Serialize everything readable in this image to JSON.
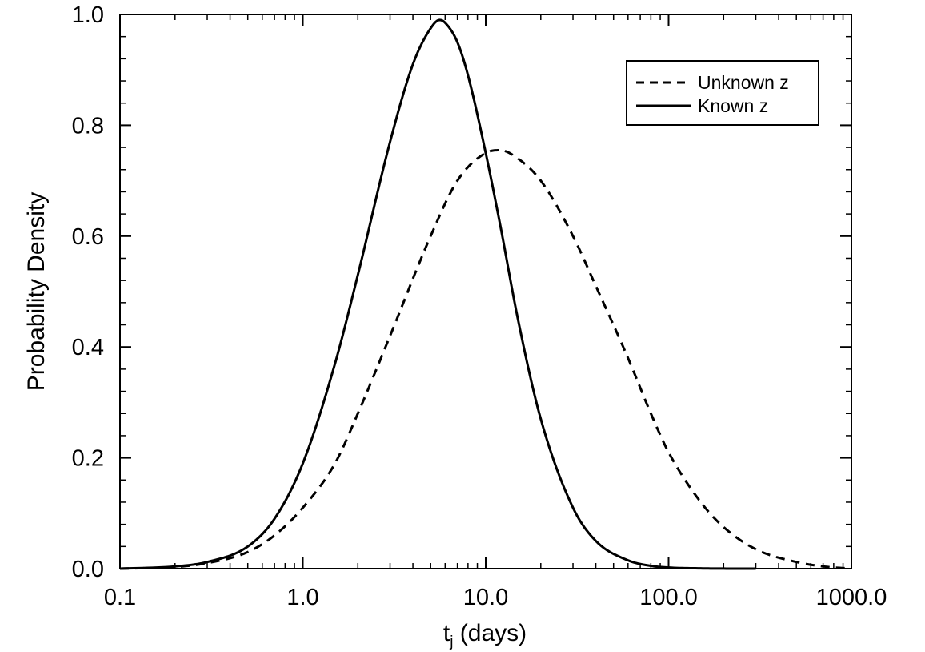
{
  "chart_data": {
    "type": "line",
    "xscale": "log",
    "xlim": [
      0.1,
      1000
    ],
    "ylim": [
      0.0,
      1.0
    ],
    "xlabel_main": "t",
    "xlabel_sub": "j",
    "xlabel_rest": " (days)",
    "ylabel": "Probability Density",
    "xticks": [
      0.1,
      1,
      10,
      100,
      1000
    ],
    "xtick_labels": [
      "0.1",
      "1.0",
      "10.0",
      "100.0",
      "1000.0"
    ],
    "yticks": [
      0.0,
      0.2,
      0.4,
      0.6,
      0.8,
      1.0
    ],
    "ytick_labels": [
      "0.0",
      "0.2",
      "0.4",
      "0.6",
      "0.8",
      "1.0"
    ],
    "grid": false,
    "legend_position": "top-right",
    "series": [
      {
        "name": "Unknown z",
        "style": "dashed",
        "color": "#000000",
        "x": [
          0.1,
          0.2,
          0.3,
          0.5,
          0.7,
          1.0,
          1.5,
          2.0,
          3.0,
          5.0,
          7.0,
          10.0,
          12.0,
          15.0,
          20.0,
          30.0,
          40.0,
          60.0,
          80.0,
          100.0,
          150.0,
          200.0,
          300.0,
          500.0,
          700.0,
          1000.0
        ],
        "y": [
          0.0,
          0.003,
          0.01,
          0.03,
          0.06,
          0.11,
          0.19,
          0.28,
          0.42,
          0.6,
          0.7,
          0.75,
          0.755,
          0.74,
          0.7,
          0.6,
          0.51,
          0.38,
          0.28,
          0.21,
          0.12,
          0.075,
          0.035,
          0.012,
          0.004,
          0.0
        ]
      },
      {
        "name": "Known z",
        "style": "solid",
        "color": "#000000",
        "x": [
          0.1,
          0.2,
          0.3,
          0.5,
          0.7,
          1.0,
          1.5,
          2.0,
          3.0,
          4.0,
          5.0,
          5.6,
          6.0,
          7.0,
          8.0,
          10.0,
          12.0,
          15.0,
          20.0,
          30.0,
          40.0,
          60.0,
          80.0,
          100.0,
          150.0,
          200.0,
          300.0
        ],
        "y": [
          0.0,
          0.004,
          0.012,
          0.04,
          0.09,
          0.19,
          0.37,
          0.53,
          0.77,
          0.91,
          0.975,
          0.99,
          0.985,
          0.95,
          0.89,
          0.75,
          0.62,
          0.45,
          0.27,
          0.11,
          0.05,
          0.015,
          0.005,
          0.002,
          0.0005,
          0.0001,
          0.0
        ]
      }
    ]
  }
}
